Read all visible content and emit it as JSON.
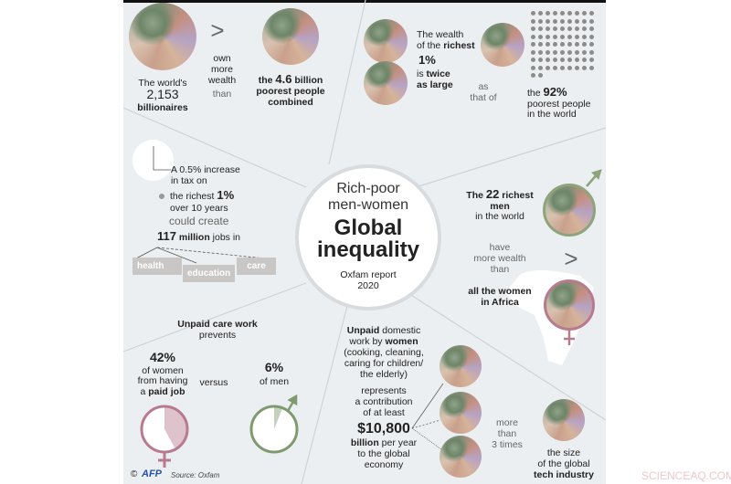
{
  "title": {
    "line1": "Rich-poor",
    "line2": "men-women",
    "line3": "Global",
    "line4": "inequality",
    "report": "Oxfam report",
    "year": "2020"
  },
  "billionaires": {
    "l1": "The world's",
    "num": "2,153",
    "l3": "billionaires",
    "compare": ">",
    "mid1": "own",
    "mid2": "more",
    "mid3": "wealth",
    "mid4": "than",
    "r1a": "the ",
    "r1b": "4.6",
    "r1c": " billion",
    "r2": "poorest people",
    "r3": "combined"
  },
  "richest": {
    "l1": "The wealth",
    "l2a": "of the ",
    "l2b": "richest",
    "pct": "1%",
    "l4a": "is ",
    "l4b": "twice",
    "l5": "as large",
    "as": "as",
    "thatof": "that of",
    "p1a": "the ",
    "p1b": "92%",
    "p2": "poorest people",
    "p3": "in the world"
  },
  "tax": {
    "l1": "A 0.5% increase",
    "l2": "in tax on",
    "l3a": "the richest ",
    "l3b": "1%",
    "l4": "over 10 years",
    "l5": "could create",
    "l6a": "117",
    "l6b": " million",
    "l6c": " jobs in",
    "sectors": [
      "health",
      "education",
      "care"
    ]
  },
  "men": {
    "l1a": "The ",
    "l1b": "22",
    "l1c": " richest",
    "l2": "men",
    "l3": "in the world",
    "compare": ">",
    "m1": "have",
    "m2": "more wealth",
    "m3": "than",
    "w1": "all the women",
    "w2": "in Africa"
  },
  "care": {
    "h1": "Unpaid care work",
    "h2": "prevents",
    "wpct": "42%",
    "w1": "of women",
    "w2": "from having",
    "w3a": "a ",
    "w3b": "paid job",
    "versus": "versus",
    "mpct": "6%",
    "m1": "of men",
    "women_share": 0.42,
    "men_share": 0.06,
    "women_color": "#b87b8e",
    "men_color": "#7f9a6e"
  },
  "domestic": {
    "l1a": "Unpaid",
    "l1b": " domestic",
    "l2a": "work by ",
    "l2b": "women",
    "l3": "(cooking, cleaning,",
    "l4": "caring for children/",
    "l5": "the elderly)",
    "r1": "represents",
    "r2": "a contribution",
    "r3": "of at least",
    "amount": "$10,800",
    "a2a": "billion",
    "a2b": " per year",
    "a3": "to the global",
    "a4": "economy",
    "m1": "more",
    "m2": "than",
    "m3": "3 times",
    "t1": "the size",
    "t2": "of the global",
    "t3": "tech industry"
  },
  "footer": {
    "copy": "©",
    "logo": "AFP",
    "source": "Source: Oxfam"
  },
  "watermark": "SCIENCEAQ.COM"
}
